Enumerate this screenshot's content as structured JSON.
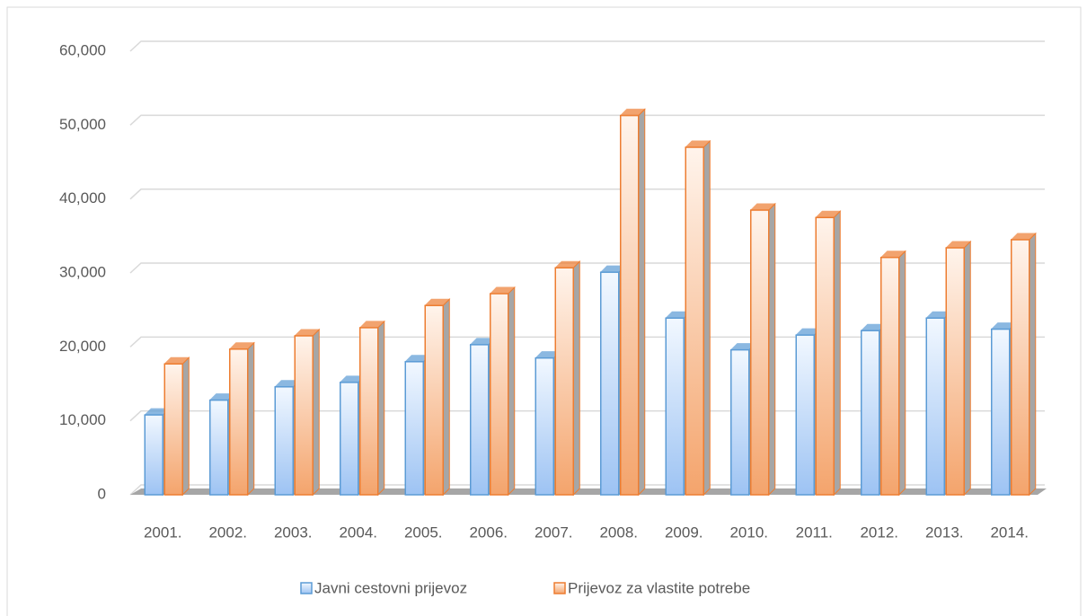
{
  "chart_data": {
    "type": "bar",
    "categories": [
      "2001.",
      "2002.",
      "2003.",
      "2004.",
      "2005.",
      "2006.",
      "2007.",
      "2008.",
      "2009.",
      "2010.",
      "2011.",
      "2012.",
      "2013.",
      "2014."
    ],
    "series": [
      {
        "name": "Javni cestovni prijevoz",
        "color": "#5b9bd5",
        "values": [
          10800,
          12800,
          14600,
          15200,
          18000,
          20300,
          18500,
          30100,
          23900,
          19600,
          21600,
          22200,
          23900,
          22400
        ]
      },
      {
        "name": "Prijevoz za vlastite potrebe",
        "color": "#ed7d31",
        "values": [
          17700,
          19700,
          21500,
          22600,
          25600,
          27200,
          30700,
          51300,
          47000,
          38500,
          37500,
          32100,
          33400,
          34500
        ]
      }
    ],
    "ylim": [
      0,
      60000
    ],
    "yticks": [
      0,
      {
        "value": 10000,
        "label": "10,000"
      },
      {
        "value": 20000,
        "label": "20,000"
      },
      {
        "value": 30000,
        "label": "30,000"
      },
      {
        "value": 40000,
        "label": "40,000"
      },
      {
        "value": 50000,
        "label": "50,000"
      },
      {
        "value": 60000,
        "label": "60,000"
      }
    ],
    "grid": true,
    "legend": "bottom"
  }
}
